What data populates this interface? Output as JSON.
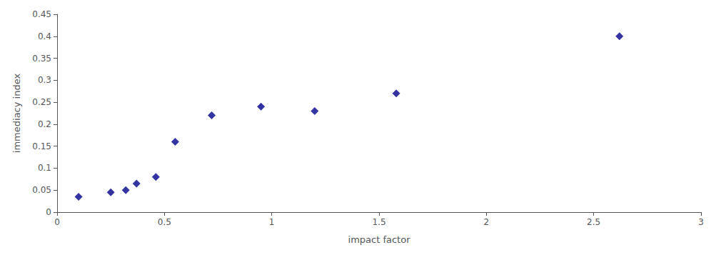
{
  "chart_data": {
    "type": "scatter",
    "x": [
      0.1,
      0.25,
      0.32,
      0.37,
      0.46,
      0.55,
      0.72,
      0.95,
      1.2,
      1.58,
      2.62
    ],
    "y": [
      0.035,
      0.045,
      0.05,
      0.065,
      0.08,
      0.16,
      0.22,
      0.24,
      0.23,
      0.27,
      0.4
    ],
    "color": "#00008B",
    "marker": "diamond",
    "xlabel": "impact factor",
    "ylabel": "immediacy index",
    "xlim": [
      0,
      3
    ],
    "ylim": [
      0,
      0.45
    ],
    "xticks": [
      0,
      0.5,
      1,
      1.5,
      2,
      2.5,
      3
    ],
    "yticks": [
      0,
      0.05,
      0.1,
      0.15,
      0.2,
      0.25,
      0.3,
      0.35,
      0.4,
      0.45
    ],
    "grid": false
  }
}
